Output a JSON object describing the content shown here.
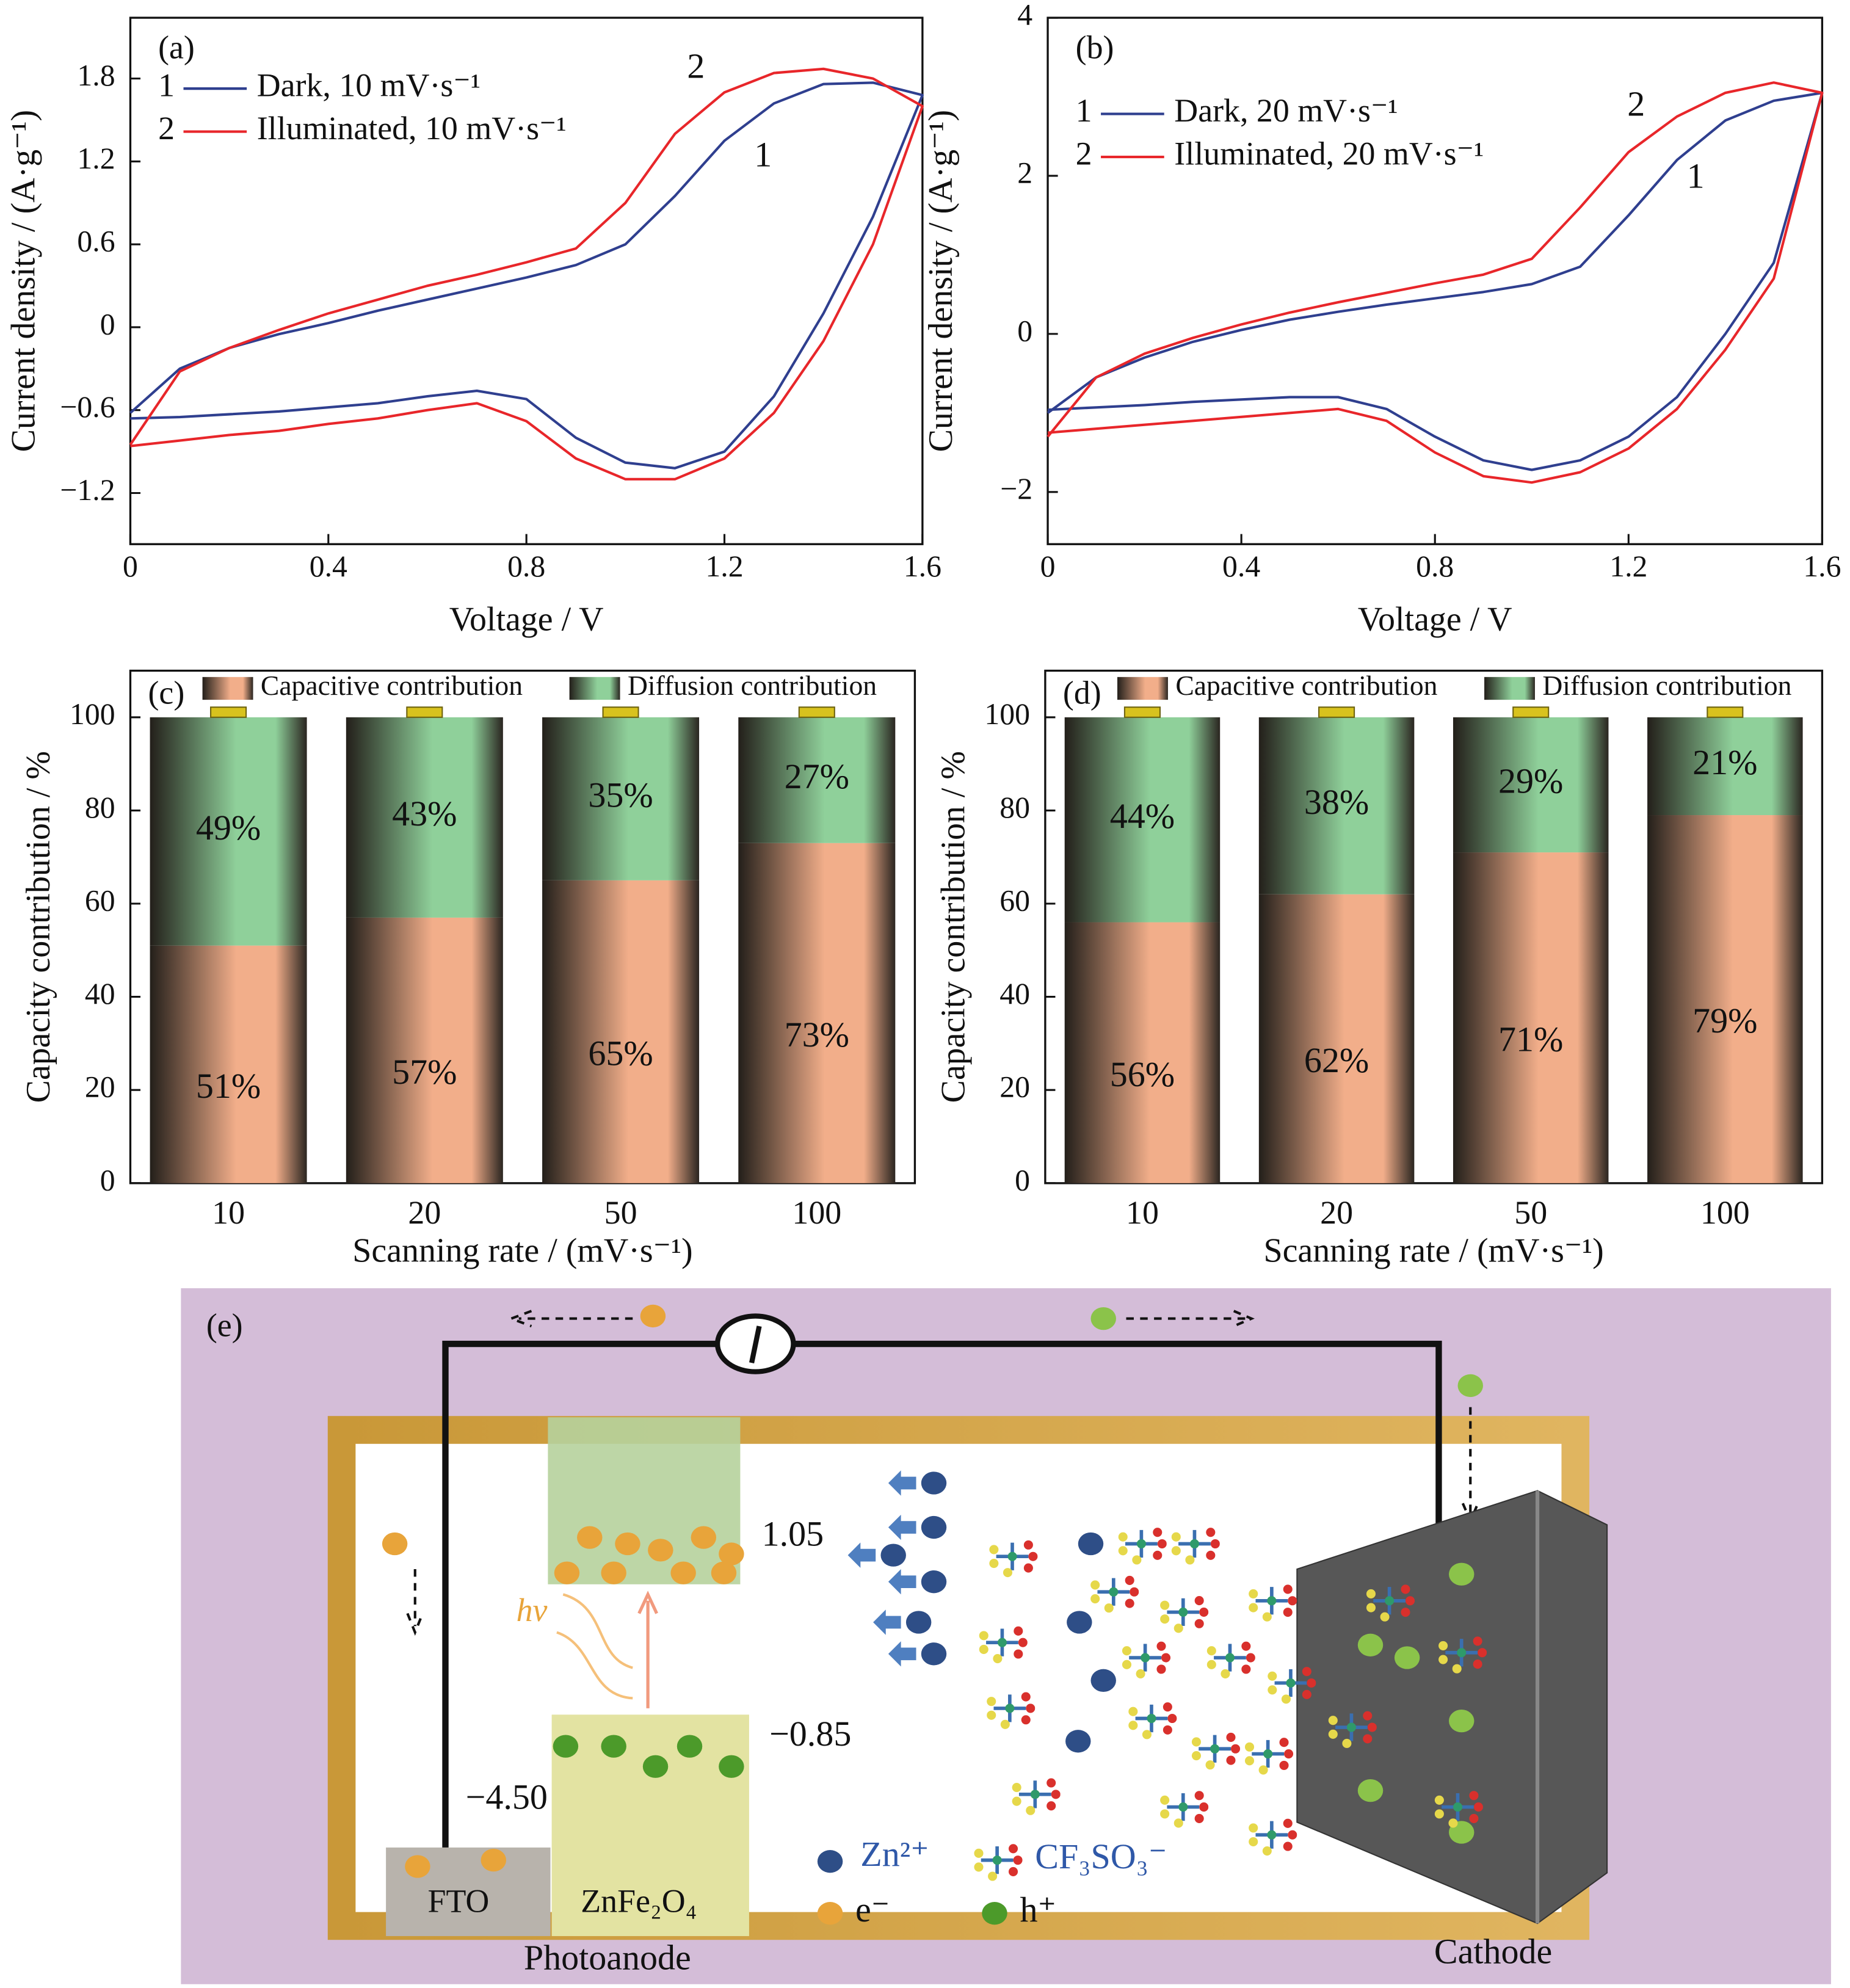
{
  "chart_data": [
    {
      "type": "line",
      "panel": "(a)",
      "xlabel": "Voltage / V",
      "ylabel": "Current density / (A·g⁻¹)",
      "x": [
        0,
        0.1,
        0.2,
        0.3,
        0.4,
        0.5,
        0.6,
        0.7,
        0.8,
        0.9,
        1.0,
        1.1,
        1.2,
        1.3,
        1.4,
        1.5,
        1.6,
        1.5,
        1.4,
        1.3,
        1.2,
        1.1,
        1.0,
        0.9,
        0.8,
        0.7,
        0.6,
        0.5,
        0.4,
        0.3,
        0.2,
        0.1,
        0
      ],
      "xlim": [
        0,
        1.6
      ],
      "xticks": [
        0,
        0.4,
        0.8,
        1.2,
        1.6
      ],
      "ylim": [
        -1.57,
        2.24
      ],
      "yticks": [
        {
          "value": -1.2,
          "label": "−1.2"
        },
        {
          "value": -0.6,
          "label": "−0.6"
        },
        0,
        0.6,
        1.2,
        1.8
      ],
      "series": [
        {
          "name": "Dark, 10 mV·s⁻¹",
          "marker": "1",
          "color": "#2f3f8f",
          "values": [
            -0.62,
            -0.3,
            -0.15,
            -0.05,
            0.03,
            0.12,
            0.2,
            0.28,
            0.36,
            0.45,
            0.6,
            0.95,
            1.35,
            1.62,
            1.76,
            1.77,
            1.68,
            0.8,
            0.1,
            -0.5,
            -0.9,
            -1.02,
            -0.98,
            -0.8,
            -0.52,
            -0.46,
            -0.5,
            -0.55,
            -0.58,
            -0.61,
            -0.63,
            -0.65,
            -0.66
          ]
        },
        {
          "name": "Illuminated, 10 mV·s⁻¹",
          "marker": "2",
          "color": "#e8262a",
          "values": [
            -0.85,
            -0.32,
            -0.15,
            -0.02,
            0.1,
            0.2,
            0.3,
            0.38,
            0.47,
            0.57,
            0.9,
            1.4,
            1.7,
            1.84,
            1.87,
            1.8,
            1.6,
            0.6,
            -0.1,
            -0.62,
            -0.95,
            -1.1,
            -1.1,
            -0.95,
            -0.68,
            -0.55,
            -0.6,
            -0.66,
            -0.7,
            -0.75,
            -0.78,
            -0.82,
            -0.86
          ]
        }
      ]
    },
    {
      "type": "line",
      "panel": "(b)",
      "xlabel": "Voltage / V",
      "ylabel": "Current density / (A·g⁻¹)",
      "x": [
        0,
        0.1,
        0.2,
        0.3,
        0.4,
        0.5,
        0.6,
        0.7,
        0.8,
        0.9,
        1.0,
        1.1,
        1.2,
        1.3,
        1.4,
        1.5,
        1.6,
        1.5,
        1.4,
        1.3,
        1.2,
        1.1,
        1.0,
        0.9,
        0.8,
        0.7,
        0.6,
        0.5,
        0.4,
        0.3,
        0.2,
        0.1,
        0
      ],
      "xlim": [
        0,
        1.6
      ],
      "xticks": [
        0,
        0.4,
        0.8,
        1.2,
        1.6
      ],
      "ylim": [
        -2.66,
        4
      ],
      "yticks": [
        {
          "value": -2,
          "label": "−2"
        },
        0,
        2,
        4
      ],
      "series": [
        {
          "name": "Dark, 20 mV·s⁻¹",
          "marker": "1",
          "color": "#2f3f8f",
          "values": [
            -1.0,
            -0.55,
            -0.3,
            -0.1,
            0.05,
            0.18,
            0.28,
            0.37,
            0.45,
            0.53,
            0.63,
            0.85,
            1.5,
            2.2,
            2.7,
            2.95,
            3.05,
            0.9,
            0.0,
            -0.8,
            -1.3,
            -1.6,
            -1.72,
            -1.6,
            -1.3,
            -0.95,
            -0.8,
            -0.8,
            -0.83,
            -0.86,
            -0.9,
            -0.93,
            -0.96
          ]
        },
        {
          "name": "Illuminated, 20 mV·s⁻¹",
          "marker": "2",
          "color": "#e8262a",
          "values": [
            -1.3,
            -0.55,
            -0.25,
            -0.05,
            0.12,
            0.27,
            0.4,
            0.52,
            0.64,
            0.75,
            0.95,
            1.6,
            2.3,
            2.75,
            3.05,
            3.18,
            3.05,
            0.7,
            -0.2,
            -0.95,
            -1.45,
            -1.75,
            -1.88,
            -1.8,
            -1.5,
            -1.1,
            -0.95,
            -1.0,
            -1.05,
            -1.1,
            -1.15,
            -1.2,
            -1.25
          ]
        }
      ]
    },
    {
      "type": "bar",
      "stacked": true,
      "panel": "(c)",
      "xlabel": "Scanning rate / (mV·s⁻¹)",
      "ylabel": "Capacity contribution / %",
      "categories": [
        "10",
        "20",
        "50",
        "100"
      ],
      "ylim": [
        0,
        110
      ],
      "yticks": [
        0,
        20,
        40,
        60,
        80,
        100
      ],
      "series": [
        {
          "name": "Capacitive contribution",
          "color": "#f2ae8a",
          "values": [
            51,
            57,
            65,
            73
          ],
          "value_labels": [
            "51%",
            "57%",
            "65%",
            "73%"
          ]
        },
        {
          "name": "Diffusion contribution",
          "color": "#8fd09a",
          "values": [
            49,
            43,
            35,
            27
          ],
          "value_labels": [
            "49%",
            "43%",
            "35%",
            "27%"
          ]
        }
      ]
    },
    {
      "type": "bar",
      "stacked": true,
      "panel": "(d)",
      "xlabel": "Scanning rate / (mV·s⁻¹)",
      "ylabel": "Capacity contribution / %",
      "categories": [
        "10",
        "20",
        "50",
        "100"
      ],
      "ylim": [
        0,
        110
      ],
      "yticks": [
        0,
        20,
        40,
        60,
        80,
        100
      ],
      "series": [
        {
          "name": "Capacitive contribution",
          "color": "#f2ae8a",
          "values": [
            56,
            62,
            71,
            79
          ],
          "value_labels": [
            "56%",
            "62%",
            "71%",
            "79%"
          ]
        },
        {
          "name": "Diffusion contribution",
          "color": "#8fd09a",
          "values": [
            44,
            38,
            29,
            21
          ],
          "value_labels": [
            "44%",
            "38%",
            "29%",
            "21%"
          ]
        }
      ]
    }
  ],
  "diagram": {
    "panel": "(e)",
    "levels": [
      "1.05",
      "−0.85",
      "−4.50"
    ],
    "hv": "hν",
    "fto": "FTO",
    "semiconductor": "ZnFe₂O₄",
    "photoanode": "Photoanode",
    "cathode": "Cathode",
    "legend": [
      "Zn²⁺",
      "CF₃SO₃⁻",
      "e⁻",
      "h⁺"
    ]
  }
}
